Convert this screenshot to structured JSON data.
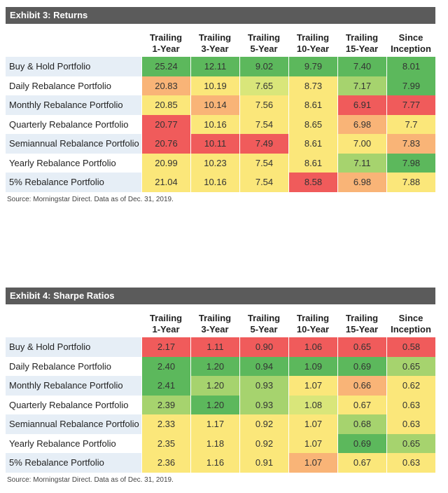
{
  "colors": {
    "green": "#5cb85c",
    "light_green": "#a6d36e",
    "yellow_green": "#d9e67a",
    "yellow": "#fbe77a",
    "orange": "#f9b477",
    "red": "#f05b5b"
  },
  "exhibits": [
    {
      "title": "Exhibit 3: Returns",
      "columns": [
        {
          "line1": "Trailing",
          "line2": "1-Year"
        },
        {
          "line1": "Trailing",
          "line2": "3-Year"
        },
        {
          "line1": "Trailing",
          "line2": "5-Year"
        },
        {
          "line1": "Trailing",
          "line2": "10-Year"
        },
        {
          "line1": "Trailing",
          "line2": "15-Year"
        },
        {
          "line1": "Since",
          "line2": "Inception"
        }
      ],
      "rows": [
        {
          "label": "Buy & Hold Portfolio",
          "values": [
            "25.24",
            "12.11",
            "9.02",
            "9.79",
            "7.40",
            "8.01"
          ],
          "colors": [
            "green",
            "green",
            "green",
            "green",
            "green",
            "green"
          ]
        },
        {
          "label": "Daily Rebalance Portfolio",
          "values": [
            "20.83",
            "10.19",
            "7.65",
            "8.73",
            "7.17",
            "7.99"
          ],
          "colors": [
            "orange",
            "yellow",
            "yellow_green",
            "yellow",
            "light_green",
            "green"
          ]
        },
        {
          "label": "Monthly Rebalance Portfolio",
          "values": [
            "20.85",
            "10.14",
            "7.56",
            "8.61",
            "6.91",
            "7.77"
          ],
          "colors": [
            "yellow",
            "orange",
            "yellow",
            "yellow",
            "red",
            "red"
          ]
        },
        {
          "label": "Quarterly Rebalance Portfolio",
          "values": [
            "20.77",
            "10.16",
            "7.54",
            "8.65",
            "6.98",
            "7.7"
          ],
          "colors": [
            "red",
            "yellow",
            "yellow",
            "yellow",
            "orange",
            "yellow"
          ]
        },
        {
          "label": "Semiannual Rebalance Portfolio",
          "values": [
            "20.76",
            "10.11",
            "7.49",
            "8.61",
            "7.00",
            "7.83"
          ],
          "colors": [
            "red",
            "red",
            "red",
            "yellow",
            "yellow",
            "orange"
          ]
        },
        {
          "label": "Yearly Rebalance Portfolio",
          "values": [
            "20.99",
            "10.23",
            "7.54",
            "8.61",
            "7.11",
            "7.98"
          ],
          "colors": [
            "yellow",
            "yellow",
            "yellow",
            "yellow",
            "light_green",
            "green"
          ]
        },
        {
          "label": "5% Rebalance Portfolio",
          "values": [
            "21.04",
            "10.16",
            "7.54",
            "8.58",
            "6.98",
            "7.88"
          ],
          "colors": [
            "yellow",
            "yellow",
            "yellow",
            "red",
            "orange",
            "yellow"
          ]
        }
      ],
      "source": "Source: Morningstar Direct. Data as of Dec. 31, 2019."
    },
    {
      "title": "Exhibit 4: Sharpe Ratios",
      "columns": [
        {
          "line1": "Trailing",
          "line2": "1-Year"
        },
        {
          "line1": "Trailing",
          "line2": "3-Year"
        },
        {
          "line1": "Trailing",
          "line2": "5-Year"
        },
        {
          "line1": "Trailing",
          "line2": "10-Year"
        },
        {
          "line1": "Trailing",
          "line2": "15-Year"
        },
        {
          "line1": "Since",
          "line2": "Inception"
        }
      ],
      "rows": [
        {
          "label": "Buy & Hold Portfolio",
          "values": [
            "2.17",
            "1.11",
            "0.90",
            "1.06",
            "0.65",
            "0.58"
          ],
          "colors": [
            "red",
            "red",
            "red",
            "red",
            "red",
            "red"
          ]
        },
        {
          "label": "Daily Rebalance Portfolio",
          "values": [
            "2.40",
            "1.20",
            "0.94",
            "1.09",
            "0.69",
            "0.65"
          ],
          "colors": [
            "green",
            "green",
            "green",
            "green",
            "green",
            "light_green"
          ]
        },
        {
          "label": "Monthly Rebalance Portfolio",
          "values": [
            "2.41",
            "1.20",
            "0.93",
            "1.07",
            "0.66",
            "0.62"
          ],
          "colors": [
            "green",
            "light_green",
            "light_green",
            "yellow",
            "orange",
            "yellow"
          ]
        },
        {
          "label": "Quarterly Rebalance Portfolio",
          "values": [
            "2.39",
            "1.20",
            "0.93",
            "1.08",
            "0.67",
            "0.63"
          ],
          "colors": [
            "light_green",
            "green",
            "light_green",
            "yellow_green",
            "yellow",
            "yellow"
          ]
        },
        {
          "label": "Semiannual Rebalance Portfolio",
          "values": [
            "2.33",
            "1.17",
            "0.92",
            "1.07",
            "0.68",
            "0.63"
          ],
          "colors": [
            "yellow",
            "yellow",
            "yellow",
            "yellow",
            "light_green",
            "yellow"
          ]
        },
        {
          "label": "Yearly Rebalance Portfolio",
          "values": [
            "2.35",
            "1.18",
            "0.92",
            "1.07",
            "0.69",
            "0.65"
          ],
          "colors": [
            "yellow",
            "yellow",
            "yellow",
            "yellow",
            "green",
            "light_green"
          ]
        },
        {
          "label": "5% Rebalance Portfolio",
          "values": [
            "2.36",
            "1.16",
            "0.91",
            "1.07",
            "0.67",
            "0.63"
          ],
          "colors": [
            "yellow",
            "yellow",
            "yellow",
            "orange",
            "yellow",
            "yellow"
          ]
        }
      ],
      "source": "Source: Morningstar Direct. Data as of Dec. 31, 2019."
    }
  ]
}
